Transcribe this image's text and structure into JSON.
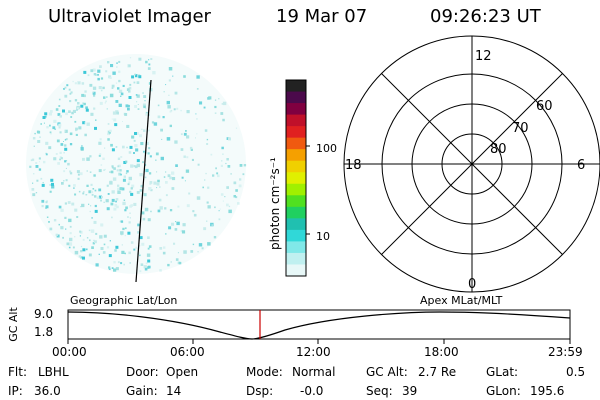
{
  "header": {
    "instrument": "Ultraviolet Imager",
    "date": "19 Mar 07",
    "time": "09:26:23 UT"
  },
  "colorbar": {
    "label": "photon cm⁻²s⁻¹",
    "ticks": [
      "100",
      "10"
    ],
    "colors": [
      "#222222",
      "#4b0a4b",
      "#800040",
      "#c0102a",
      "#e02020",
      "#f05a10",
      "#f5a000",
      "#f0d000",
      "#e0f000",
      "#a0f000",
      "#50e020",
      "#20d060",
      "#20c0b0",
      "#30d8d8",
      "#80e8e8",
      "#c0f0f0",
      "#e8f8f8"
    ]
  },
  "polar": {
    "mlt_labels": {
      "top": "12",
      "left": "18",
      "right": "6",
      "bottom": "0"
    },
    "lat_labels": [
      "60",
      "70",
      "80"
    ]
  },
  "timeline": {
    "left_label": "Geographic Lat/Lon",
    "right_label": "Apex MLat/MLT",
    "axis_title": "GC Alt",
    "y_ticks": [
      "9.0",
      "1.8"
    ],
    "x_ticks": [
      "00:00",
      "06:00",
      "12:00",
      "18:00",
      "23:59"
    ],
    "marker_color": "#cc0000"
  },
  "status": {
    "flt_label": "Flt:",
    "flt_value": "LBHL",
    "door_label": "Door:",
    "door_value": "Open",
    "mode_label": "Mode:",
    "mode_value": "Normal",
    "gcalt_label": "GC Alt:",
    "gcalt_value": "2.7 Re",
    "glat_label": "GLat:",
    "glat_value": "0.5",
    "ip_label": "IP:",
    "ip_value": "36.0",
    "gain_label": "Gain:",
    "gain_value": "14",
    "dsp_label": "Dsp:",
    "dsp_value": "-0.0",
    "seq_label": "Seq:",
    "seq_value": "39",
    "glon_label": "GLon:",
    "glon_value": "195.6"
  }
}
